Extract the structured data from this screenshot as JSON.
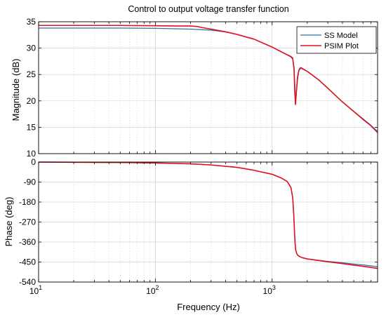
{
  "chart_data": [
    {
      "type": "line",
      "title": "Control to output voltage transfer function",
      "xlabel": "",
      "ylabel": "Magnitude (dB)",
      "xscale": "log",
      "xlim": [
        10,
        8000
      ],
      "ylim": [
        10,
        35
      ],
      "yticks": [
        10,
        15,
        20,
        25,
        30,
        35
      ],
      "grid": true,
      "legend": "top-right",
      "series": [
        {
          "name": "SS Model",
          "color": "#2f6fb4",
          "x": [
            10,
            20,
            50,
            100,
            200,
            300,
            400,
            500,
            700,
            1000,
            1300,
            1450,
            1500,
            1540,
            1570,
            1590,
            1620,
            1660,
            1700,
            1760,
            1800,
            2000,
            2500,
            3000,
            4000,
            5000,
            6000,
            7000,
            8000
          ],
          "y": [
            33.8,
            33.8,
            33.8,
            33.75,
            33.6,
            33.4,
            33.05,
            32.6,
            31.7,
            30.2,
            28.9,
            28.3,
            27.9,
            26.5,
            22.5,
            19.5,
            22.0,
            24.5,
            25.8,
            26.2,
            26.1,
            25.6,
            24.0,
            22.4,
            19.8,
            18.0,
            16.6,
            15.4,
            14.2
          ]
        },
        {
          "name": "PSIM Plot",
          "color": "#e0101c",
          "x": [
            10,
            20,
            50,
            100,
            150,
            200,
            230,
            250,
            300,
            400,
            500,
            700,
            1000,
            1300,
            1450,
            1500,
            1540,
            1565,
            1585,
            1610,
            1650,
            1700,
            1750,
            1800,
            2000,
            2500,
            3000,
            4000,
            5000,
            6000,
            7000,
            8000
          ],
          "y": [
            34.3,
            34.3,
            34.3,
            34.25,
            34.2,
            34.2,
            34.1,
            33.9,
            33.6,
            33.1,
            32.6,
            31.7,
            30.2,
            28.9,
            28.4,
            28.1,
            26.0,
            21.5,
            19.3,
            21.5,
            24.5,
            25.9,
            26.3,
            26.2,
            25.6,
            24.0,
            22.4,
            19.8,
            18.0,
            16.5,
            15.3,
            14.0
          ]
        }
      ]
    },
    {
      "type": "line",
      "title": "",
      "xlabel": "Frequency  (Hz)",
      "ylabel": "Phase (deg)",
      "xscale": "log",
      "xlim": [
        10,
        8000
      ],
      "ylim": [
        -540,
        0
      ],
      "yticks": [
        0,
        -90,
        -180,
        -270,
        -360,
        -450,
        -540
      ],
      "grid": true,
      "series": [
        {
          "name": "SS Model",
          "color": "#2f6fb4",
          "x": [
            10,
            20,
            50,
            100,
            200,
            300,
            500,
            700,
            1000,
            1200,
            1350,
            1450,
            1500,
            1530,
            1550,
            1570,
            1590,
            1620,
            1650,
            1700,
            1800,
            2000,
            2500,
            3000,
            4000,
            5000,
            6000,
            7000,
            8000
          ],
          "y": [
            0,
            -1,
            -2,
            -4,
            -8,
            -13,
            -24,
            -37,
            -55,
            -72,
            -88,
            -115,
            -160,
            -230,
            -300,
            -360,
            -395,
            -410,
            -418,
            -424,
            -430,
            -436,
            -442,
            -447,
            -453,
            -459,
            -463,
            -467,
            -471
          ]
        },
        {
          "name": "PSIM Plot",
          "color": "#e0101c",
          "x": [
            10,
            20,
            50,
            100,
            200,
            300,
            500,
            700,
            1000,
            1200,
            1350,
            1450,
            1500,
            1530,
            1550,
            1570,
            1590,
            1620,
            1650,
            1700,
            1800,
            2000,
            2500,
            3000,
            4000,
            5000,
            6000,
            7000,
            8000
          ],
          "y": [
            0,
            -1,
            -2,
            -4,
            -8,
            -13,
            -24,
            -37,
            -55,
            -72,
            -88,
            -115,
            -160,
            -230,
            -300,
            -360,
            -395,
            -410,
            -418,
            -424,
            -430,
            -436,
            -443,
            -449,
            -457,
            -464,
            -469,
            -474,
            -479
          ]
        }
      ]
    }
  ],
  "x_tick_labels": [
    {
      "value": 10,
      "base": "10",
      "exp": "1"
    },
    {
      "value": 100,
      "base": "10",
      "exp": "2"
    },
    {
      "value": 1000,
      "base": "10",
      "exp": "3"
    }
  ]
}
